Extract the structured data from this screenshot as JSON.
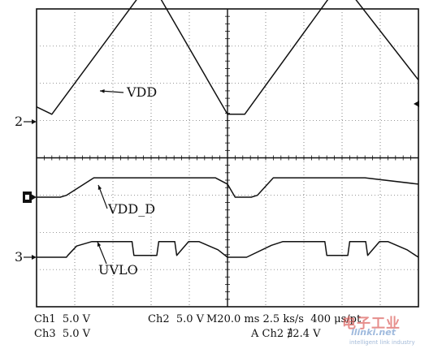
{
  "chart_data": {
    "type": "line",
    "title": "",
    "grid": true,
    "time_per_div_ms": 20,
    "divisions": {
      "x": 10,
      "y": 8
    },
    "xlim_div": [
      0,
      10
    ],
    "series": [
      {
        "name": "VDD",
        "channel": "2",
        "x_div": [
          0,
          0.4,
          2.98,
          5.0,
          5.45,
          7.98,
          10.0
        ],
        "y_div": [
          0.4,
          0.2,
          3.78,
          0.2,
          0.2,
          3.78,
          1.12
        ]
      },
      {
        "name": "VDD_D",
        "channel": "1",
        "x_div": [
          0,
          0.62,
          0.78,
          1.5,
          4.68,
          5.0,
          5.2,
          5.62,
          5.78,
          6.2,
          8.6,
          10.0
        ],
        "y_div": [
          0,
          0,
          0.05,
          0.52,
          0.52,
          0.35,
          0.0,
          0.0,
          0.05,
          0.52,
          0.52,
          0.35
        ]
      },
      {
        "name": "UVLO",
        "channel": "3",
        "x_div": [
          0,
          0.78,
          0.82,
          1.05,
          1.45,
          2.5,
          2.55,
          3.15,
          3.2,
          3.62,
          3.67,
          3.98,
          4.25,
          4.75,
          5.0,
          5.05,
          5.25,
          5.5,
          6.15,
          6.45,
          7.55,
          7.6,
          8.15,
          8.2,
          8.62,
          8.67,
          8.98,
          9.2,
          9.7,
          10.0
        ],
        "y_div": [
          0,
          0,
          0.05,
          0.3,
          0.42,
          0.42,
          0.05,
          0.05,
          0.42,
          0.42,
          0.05,
          0.42,
          0.42,
          0.2,
          0.0,
          0.0,
          0.0,
          0.0,
          0.32,
          0.42,
          0.42,
          0.05,
          0.05,
          0.42,
          0.42,
          0.05,
          0.42,
          0.42,
          0.2,
          0.0
        ]
      }
    ],
    "annotations": [
      "VDD",
      "VDD_D",
      "UVLO"
    ],
    "channel_markers": [
      "2",
      "3"
    ]
  },
  "status": {
    "ch1": "Ch1  5.0 V",
    "ch2": "Ch2  5.0 V",
    "timebase": "M20.0 ms 2.5 ks/s  400 μs/pt",
    "ch3": "Ch3  5.0 V",
    "trigger": "A Ch2 ∄2.4 V"
  },
  "watermark": {
    "cn": "电子工业",
    "en": "llinki.net",
    "tag": "intelligent link industry"
  }
}
